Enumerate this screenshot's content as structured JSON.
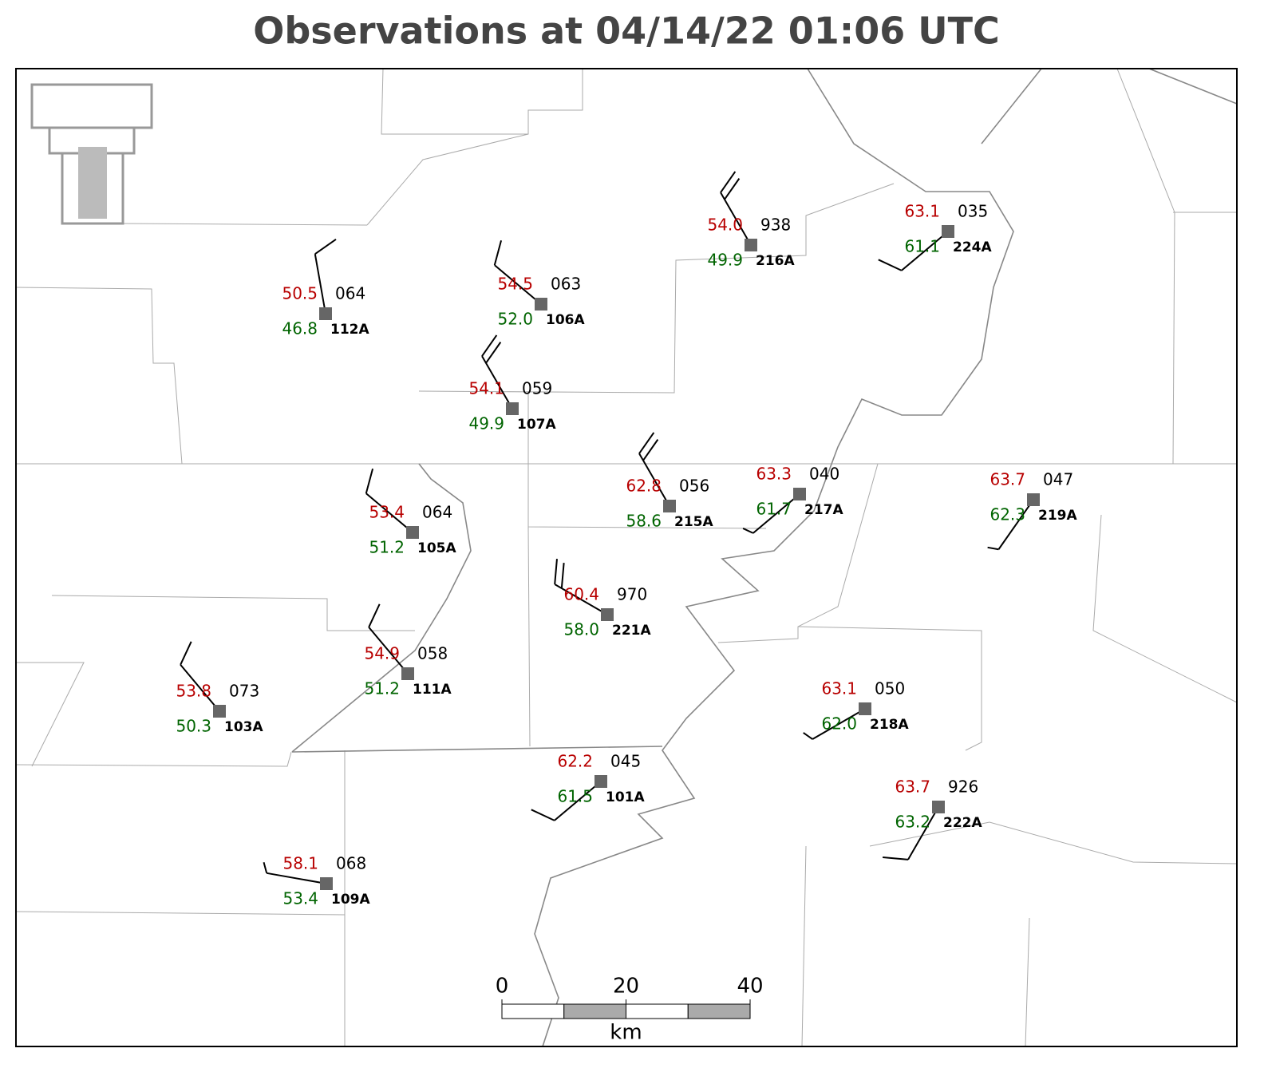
{
  "title": "Observations at 04/14/22 01:06 UTC",
  "stations": [
    {
      "id": "112A",
      "temperature": "50.5",
      "dewpoint": "46.8",
      "pressure": "064",
      "wind_direction": 350,
      "wind_speed": 10
    },
    {
      "id": "106A",
      "temperature": "54.5",
      "dewpoint": "52.0",
      "pressure": "063",
      "wind_direction": 310,
      "wind_speed": 10
    },
    {
      "id": "107A",
      "temperature": "54.1",
      "dewpoint": "49.9",
      "pressure": "059",
      "wind_direction": 330,
      "wind_speed": 20
    },
    {
      "id": "216A",
      "temperature": "54.0",
      "dewpoint": "49.9",
      "pressure": "938",
      "wind_direction": 330,
      "wind_speed": 20
    },
    {
      "id": "224A",
      "temperature": "63.1",
      "dewpoint": "61.1",
      "pressure": "035",
      "wind_direction": 230,
      "wind_speed": 10
    },
    {
      "id": "215A",
      "temperature": "62.8",
      "dewpoint": "58.6",
      "pressure": "056",
      "wind_direction": 330,
      "wind_speed": 20
    },
    {
      "id": "217A",
      "temperature": "63.3",
      "dewpoint": "61.7",
      "pressure": "040",
      "wind_direction": 230,
      "wind_speed": 5
    },
    {
      "id": "219A",
      "temperature": "63.7",
      "dewpoint": "62.3",
      "pressure": "047",
      "wind_direction": 215,
      "wind_speed": 5
    },
    {
      "id": "105A",
      "temperature": "53.4",
      "dewpoint": "51.2",
      "pressure": "064",
      "wind_direction": 310,
      "wind_speed": 10
    },
    {
      "id": "221A",
      "temperature": "60.4",
      "dewpoint": "58.0",
      "pressure": "970",
      "wind_direction": 300,
      "wind_speed": 20
    },
    {
      "id": "111A",
      "temperature": "54.9",
      "dewpoint": "51.2",
      "pressure": "058",
      "wind_direction": 320,
      "wind_speed": 10
    },
    {
      "id": "103A",
      "temperature": "53.8",
      "dewpoint": "50.3",
      "pressure": "073",
      "wind_direction": 320,
      "wind_speed": 10
    },
    {
      "id": "218A",
      "temperature": "63.1",
      "dewpoint": "62.0",
      "pressure": "050",
      "wind_direction": 240,
      "wind_speed": 5
    },
    {
      "id": "101A",
      "temperature": "62.2",
      "dewpoint": "61.5",
      "pressure": "045",
      "wind_direction": 230,
      "wind_speed": 10
    },
    {
      "id": "222A",
      "temperature": "63.7",
      "dewpoint": "63.2",
      "pressure": "926",
      "wind_direction": 210,
      "wind_speed": 10
    },
    {
      "id": "109A",
      "temperature": "58.1",
      "dewpoint": "53.4",
      "pressure": "068",
      "wind_direction": 280,
      "wind_speed": 5
    }
  ],
  "scale_bar": {
    "ticks": [
      0,
      20,
      40
    ],
    "unit": "km"
  }
}
